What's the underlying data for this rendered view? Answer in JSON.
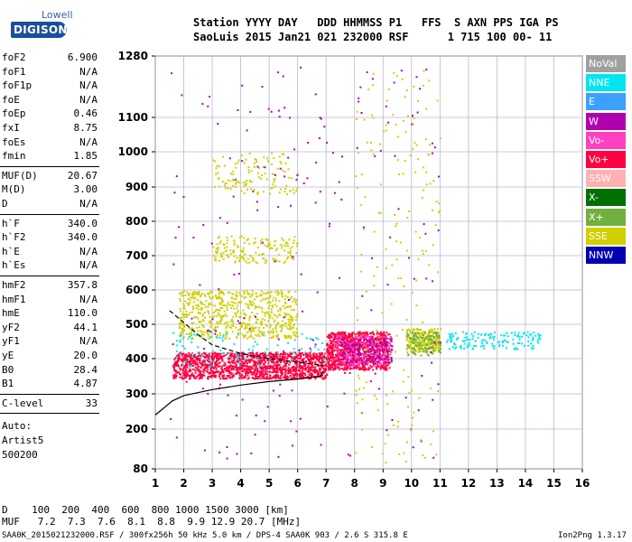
{
  "logo": {
    "top": "Lowell",
    "main": "DIGISONDE"
  },
  "header": {
    "line1": "Station YYYY DAY   DDD HHMMSS P1   FFS  S AXN PPS IGA PS",
    "line2": "SaoLuis 2015 Jan21 021 232000 RSF      1 715 100 00- 11"
  },
  "params": {
    "group1": [
      {
        "k": "foF2",
        "v": "6.900"
      },
      {
        "k": "foF1",
        "v": "N/A"
      },
      {
        "k": "foF1p",
        "v": "N/A"
      },
      {
        "k": "foE",
        "v": "N/A"
      },
      {
        "k": "foEp",
        "v": "0.46"
      },
      {
        "k": "fxI",
        "v": "8.75"
      },
      {
        "k": "foEs",
        "v": "N/A"
      },
      {
        "k": "fmin",
        "v": "1.85"
      }
    ],
    "group2": [
      {
        "k": "MUF(D)",
        "v": "20.67"
      },
      {
        "k": "M(D)",
        "v": "3.00"
      },
      {
        "k": "D",
        "v": "N/A"
      }
    ],
    "group3": [
      {
        "k": "h`F",
        "v": "340.0"
      },
      {
        "k": "h`F2",
        "v": "340.0"
      },
      {
        "k": "h`E",
        "v": "N/A"
      },
      {
        "k": "h`Es",
        "v": "N/A"
      }
    ],
    "group4": [
      {
        "k": "hmF2",
        "v": "357.8"
      },
      {
        "k": "hmF1",
        "v": "N/A"
      },
      {
        "k": "hmE",
        "v": "110.0"
      },
      {
        "k": "yF2",
        "v": "44.1"
      },
      {
        "k": "yF1",
        "v": "N/A"
      },
      {
        "k": "yE",
        "v": "20.0"
      },
      {
        "k": "B0",
        "v": "28.4"
      },
      {
        "k": "B1",
        "v": "4.87"
      }
    ],
    "group5": [
      {
        "k": "C-level",
        "v": "33"
      }
    ],
    "auto": [
      "Auto:",
      "Artist5",
      "500200"
    ]
  },
  "legend": [
    {
      "label": "NoVal",
      "color": "#a0a0a0"
    },
    {
      "label": "NNE",
      "color": "#00e5ee"
    },
    {
      "label": "E",
      "color": "#3ca0ff"
    },
    {
      "label": "W",
      "color": "#b000b0"
    },
    {
      "label": "Vo-",
      "color": "#ff40c0"
    },
    {
      "label": "Vo+",
      "color": "#ff0040"
    },
    {
      "label": "SSW",
      "color": "#ffb0b0"
    },
    {
      "label": "X-",
      "color": "#007000"
    },
    {
      "label": "X+",
      "color": "#70b040"
    },
    {
      "label": "SSE",
      "color": "#d0d000"
    },
    {
      "label": "NNW",
      "color": "#0000b0"
    }
  ],
  "chart_data": {
    "type": "scatter",
    "x_ticks": [
      "1",
      "2",
      "3",
      "4",
      "5",
      "6",
      "7",
      "8",
      "9",
      "10",
      "11",
      "12",
      "13",
      "14",
      "15",
      "16"
    ],
    "y_ticks": [
      "80",
      "200",
      "300",
      "400",
      "500",
      "600",
      "700",
      "800",
      "900",
      "1000",
      "1100",
      "1280"
    ],
    "xlim": [
      1,
      16
    ],
    "ylim": [
      80,
      1280
    ],
    "clusters": [
      {
        "series": "Vo+",
        "x": [
          1.6,
          7.0
        ],
        "y": [
          345,
          420
        ],
        "n": 1400
      },
      {
        "series": "Vo+",
        "x": [
          7.0,
          9.2
        ],
        "y": [
          370,
          480
        ],
        "n": 900
      },
      {
        "series": "Vo-",
        "x": [
          7.3,
          9.3
        ],
        "y": [
          380,
          470
        ],
        "n": 250
      },
      {
        "series": "SSE",
        "x": [
          1.8,
          6.0
        ],
        "y": [
          460,
          600
        ],
        "n": 650
      },
      {
        "series": "SSE",
        "x": [
          3.0,
          6.0
        ],
        "y": [
          680,
          760
        ],
        "n": 160
      },
      {
        "series": "SSE",
        "x": [
          3.0,
          6.0
        ],
        "y": [
          880,
          1000
        ],
        "n": 120
      },
      {
        "series": "SSE",
        "x": [
          9.8,
          11.0
        ],
        "y": [
          420,
          490
        ],
        "n": 250
      },
      {
        "series": "X+",
        "x": [
          9.8,
          11.0
        ],
        "y": [
          410,
          480
        ],
        "n": 120
      },
      {
        "series": "NNE",
        "x": [
          11.2,
          14.5
        ],
        "y": [
          430,
          480
        ],
        "n": 150
      },
      {
        "series": "W",
        "x": [
          7.5,
          9.3
        ],
        "y": [
          390,
          460
        ],
        "n": 160
      },
      {
        "series": "NNE",
        "x": [
          1.6,
          7.0
        ],
        "y": [
          380,
          480
        ],
        "n": 100
      },
      {
        "series": "W",
        "x": [
          1.5,
          11.0
        ],
        "y": [
          100,
          1250
        ],
        "n": 200
      },
      {
        "series": "SSE",
        "x": [
          8.0,
          11.0
        ],
        "y": [
          100,
          1250
        ],
        "n": 180
      }
    ],
    "trace_solid": [
      [
        1,
        240
      ],
      [
        1.3,
        260
      ],
      [
        1.6,
        280
      ],
      [
        2,
        295
      ],
      [
        3,
        312
      ],
      [
        4,
        325
      ],
      [
        5,
        335
      ],
      [
        6,
        342
      ],
      [
        6.8,
        350
      ],
      [
        6.9,
        365
      ]
    ],
    "trace_dashed": [
      [
        1.5,
        540
      ],
      [
        2,
        505
      ],
      [
        2.5,
        470
      ],
      [
        3,
        440
      ],
      [
        4,
        415
      ],
      [
        5,
        400
      ],
      [
        6,
        390
      ],
      [
        6.9,
        380
      ]
    ],
    "grid": true
  },
  "bottom": {
    "d_row": "D    100  200  400  600  800 1000 1500 3000 [km]",
    "muf_row": "MUF   7.2  7.3  7.6  8.1  8.8  9.9 12.9 20.7 [MHz]"
  },
  "footer": {
    "left": "SAA0K_2015021232000.RSF / 300fx256h 50 kHz 5.0 km / DPS-4 SAA0K 903 / 2.6 S 315.8 E",
    "right": "Ion2Png 1.3.17"
  }
}
